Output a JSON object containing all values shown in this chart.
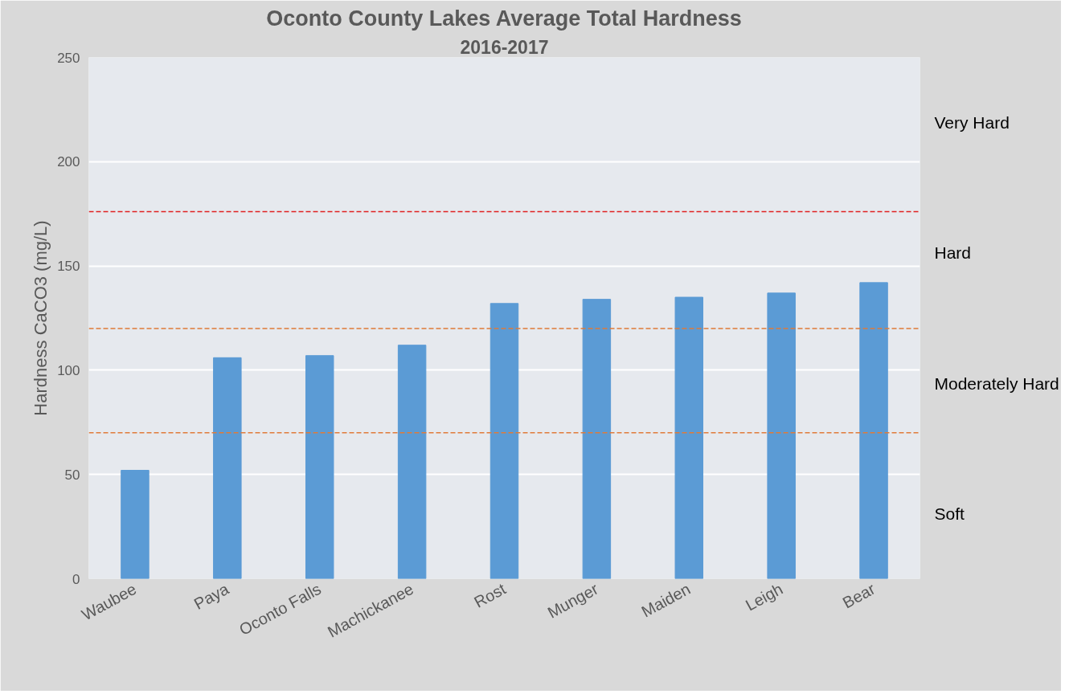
{
  "chart_data": {
    "type": "bar",
    "title": "Oconto County Lakes Average Total Hardness",
    "subtitle": "2016-2017",
    "ylabel": "Hardness CaCO3 (mg/L)",
    "categories": [
      "Waubee",
      "Paya",
      "Oconto Falls",
      "Machickanee",
      "Rost",
      "Munger",
      "Maiden",
      "Leigh",
      "Bear"
    ],
    "values": [
      52,
      106,
      107,
      112,
      132,
      134,
      135,
      137,
      142
    ],
    "color": "#5b9bd5",
    "ylim": [
      0,
      250
    ],
    "yticks": [
      0,
      50,
      100,
      150,
      200,
      250
    ],
    "grid": "y",
    "ref_lines": [
      {
        "axis": "y",
        "value": 176,
        "color": "#e02020",
        "line_style": "dashed"
      },
      {
        "axis": "y",
        "value": 120,
        "color": "#e07b39",
        "line_style": "dashed"
      },
      {
        "axis": "y",
        "value": 70,
        "color": "#e07b39",
        "line_style": "dashed"
      }
    ],
    "annotations": [
      "Very Hard",
      "Hard",
      "Moderately Hard",
      "Soft"
    ]
  }
}
